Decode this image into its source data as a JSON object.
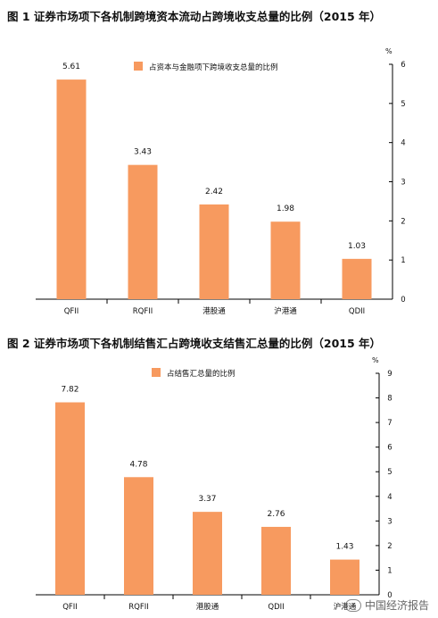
{
  "watermark": "中国经济报告",
  "chart_data": [
    {
      "type": "bar",
      "title": "图 1    证券市场项下各机制跨境资本流动占跨境收支总量的比例（2015 年）",
      "unit": "%",
      "legend": "占资本与金融项下跨境收支总量的比例",
      "legend_position": "top",
      "categories": [
        "QFII",
        "RQFII",
        "港股通",
        "沪港通",
        "QDII"
      ],
      "values": [
        5.61,
        3.43,
        2.42,
        1.98,
        1.03
      ],
      "ylim": [
        0,
        6
      ],
      "yticks": [
        0,
        1,
        2,
        3,
        4,
        5,
        6
      ],
      "bar_color": "#F79A5F",
      "grid": false
    },
    {
      "type": "bar",
      "title": "图 2    证券市场项下各机制结售汇占跨境收支结售汇总量的比例（2015 年）",
      "unit": "%",
      "legend": "占结售汇总量的比例",
      "legend_position": "top",
      "categories": [
        "QFII",
        "RQFII",
        "港股通",
        "QDII",
        "沪港通"
      ],
      "values": [
        7.82,
        4.78,
        3.37,
        2.76,
        1.43
      ],
      "ylim": [
        0,
        9
      ],
      "yticks": [
        0,
        1,
        2,
        3,
        4,
        5,
        6,
        7,
        8,
        9
      ],
      "bar_color": "#F79A5F",
      "grid": false
    }
  ]
}
